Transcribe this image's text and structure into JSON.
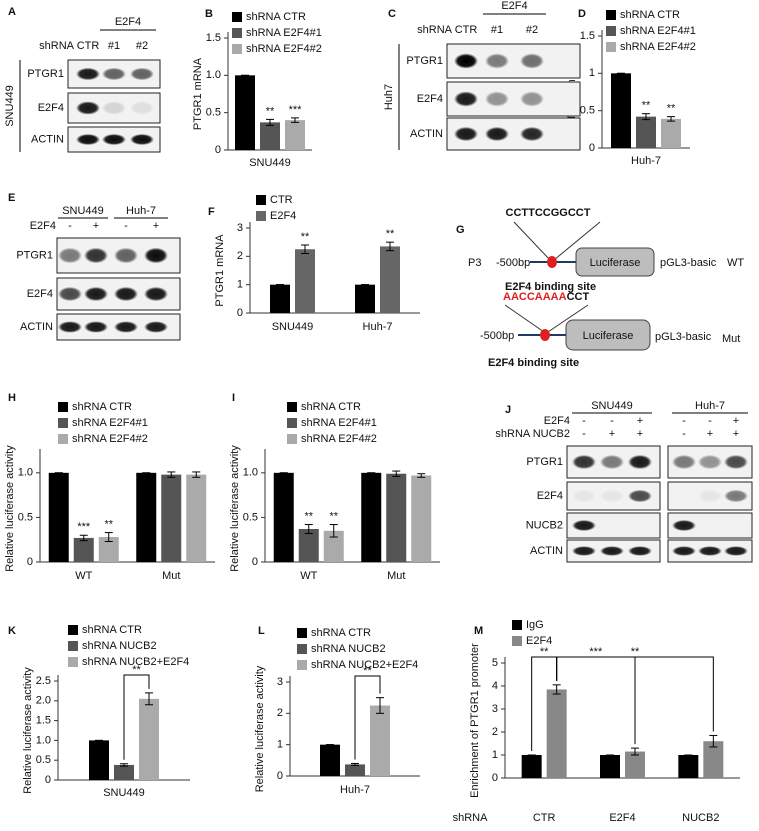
{
  "chart_data": [
    {
      "panel": "B",
      "type": "bar",
      "ylabel": "PTGR1 mRNA",
      "xlabel": "SNU449",
      "ylim": [
        0,
        1.5
      ],
      "yticks": [
        0,
        0.5,
        {
          "value": 1,
          "label": "1.0"
        },
        1.5
      ],
      "series": [
        {
          "name": "shRNA CTR",
          "color": "#000000",
          "values": [
            1.0
          ],
          "errors": [
            0.0
          ]
        },
        {
          "name": "shRNA E2F4#1",
          "color": "#555555",
          "values": [
            0.37
          ],
          "errors": [
            0.04
          ]
        },
        {
          "name": "shRNA E2F4#2",
          "color": "#aaaaaa",
          "values": [
            0.4
          ],
          "errors": [
            0.03
          ]
        }
      ],
      "annotations": [
        {
          "text": "**",
          "series": 1,
          "category": 0
        },
        {
          "text": "***",
          "series": 2,
          "category": 0
        }
      ]
    },
    {
      "panel": "D",
      "type": "bar",
      "ylabel": "PTGR1 mRNA",
      "xlabel": "Huh-7",
      "ylim": [
        0,
        1.5
      ],
      "yticks": [
        0,
        0.5,
        1,
        1.5
      ],
      "series": [
        {
          "name": "shRNA CTR",
          "color": "#000000",
          "values": [
            1.0
          ],
          "errors": [
            0.0
          ]
        },
        {
          "name": "shRNA E2F4#1",
          "color": "#555555",
          "values": [
            0.42
          ],
          "errors": [
            0.04
          ]
        },
        {
          "name": "shRNA E2F4#2",
          "color": "#aaaaaa",
          "values": [
            0.39
          ],
          "errors": [
            0.03
          ]
        }
      ],
      "annotations": [
        {
          "text": "**",
          "series": 1,
          "category": 0
        },
        {
          "text": "**",
          "series": 2,
          "category": 0
        }
      ]
    },
    {
      "panel": "F",
      "type": "bar",
      "ylabel": "PTGR1 mRNA",
      "categories": [
        "SNU449",
        "Huh-7"
      ],
      "ylim": [
        0,
        3
      ],
      "yticks": [
        0,
        1,
        2,
        3
      ],
      "series": [
        {
          "name": "CTR",
          "color": "#000000",
          "values": [
            1.0,
            1.0
          ],
          "errors": [
            0.0,
            0.0
          ]
        },
        {
          "name": "E2F4",
          "color": "#666666",
          "values": [
            2.25,
            2.35
          ],
          "errors": [
            0.15,
            0.15
          ]
        }
      ],
      "annotations": [
        {
          "text": "**",
          "series": 1,
          "category": 0
        },
        {
          "text": "**",
          "series": 1,
          "category": 1
        }
      ]
    },
    {
      "panel": "H",
      "type": "bar",
      "ylabel": "Relative luciferase activity",
      "categories": [
        "WT",
        "Mut"
      ],
      "ylim": [
        0,
        1.2
      ],
      "yticks": [
        0,
        0.5,
        {
          "value": 1,
          "label": "1.0"
        }
      ],
      "series": [
        {
          "name": "shRNA CTR",
          "color": "#000000",
          "values": [
            1.0,
            1.0
          ],
          "errors": [
            0.0,
            0.0
          ]
        },
        {
          "name": "shRNA E2F4#1",
          "color": "#555555",
          "values": [
            0.27,
            0.98
          ],
          "errors": [
            0.03,
            0.03
          ]
        },
        {
          "name": "shRNA E2F4#2",
          "color": "#aaaaaa",
          "values": [
            0.28,
            0.98
          ],
          "errors": [
            0.05,
            0.03
          ]
        }
      ],
      "annotations": [
        {
          "text": "***",
          "series": 1,
          "category": 0
        },
        {
          "text": "**",
          "series": 2,
          "category": 0
        }
      ]
    },
    {
      "panel": "I",
      "type": "bar",
      "ylabel": "Relative luciferase activity",
      "categories": [
        "WT",
        "Mut"
      ],
      "ylim": [
        0,
        1.2
      ],
      "yticks": [
        0,
        0.5,
        {
          "value": 1,
          "label": "1.0"
        }
      ],
      "series": [
        {
          "name": "shRNA CTR",
          "color": "#000000",
          "values": [
            1.0,
            1.0
          ],
          "errors": [
            0.0,
            0.0
          ]
        },
        {
          "name": "shRNA E2F4#1",
          "color": "#555555",
          "values": [
            0.37,
            0.99
          ],
          "errors": [
            0.05,
            0.03
          ]
        },
        {
          "name": "shRNA E2F4#2",
          "color": "#aaaaaa",
          "values": [
            0.35,
            0.97
          ],
          "errors": [
            0.07,
            0.02
          ]
        }
      ],
      "annotations": [
        {
          "text": "**",
          "series": 1,
          "category": 0
        },
        {
          "text": "**",
          "series": 2,
          "category": 0
        }
      ]
    },
    {
      "panel": "K",
      "type": "bar",
      "ylabel": "Relative luciferase activity",
      "xlabel": "SNU449",
      "ylim": [
        0,
        2.5
      ],
      "yticks": [
        0,
        0.5,
        {
          "value": 1,
          "label": "1.0"
        },
        1.5,
        {
          "value": 2,
          "label": "2.0"
        },
        2.5
      ],
      "series": [
        {
          "name": "shRNA CTR",
          "color": "#000000",
          "values": [
            1.0
          ],
          "errors": [
            0.0
          ]
        },
        {
          "name": "shRNA NUCB2",
          "color": "#555555",
          "values": [
            0.38
          ],
          "errors": [
            0.03
          ]
        },
        {
          "name": "shRNA  NUCB2+E2F4",
          "color": "#aaaaaa",
          "values": [
            2.05
          ],
          "errors": [
            0.15
          ]
        }
      ],
      "annotations": [
        {
          "text": "**",
          "from": [
            1,
            0
          ],
          "to": [
            2,
            0
          ]
        }
      ]
    },
    {
      "panel": "L",
      "type": "bar",
      "ylabel": "Relative luciferase activity",
      "xlabel": "Huh-7",
      "ylim": [
        0,
        3
      ],
      "yticks": [
        0,
        1,
        2,
        3
      ],
      "series": [
        {
          "name": "shRNA CTR",
          "color": "#000000",
          "values": [
            1.0
          ],
          "errors": [
            0.0
          ]
        },
        {
          "name": "shRNA NUCB2",
          "color": "#555555",
          "values": [
            0.37
          ],
          "errors": [
            0.03
          ]
        },
        {
          "name": "shRNA  NUCB2+E2F4",
          "color": "#aaaaaa",
          "values": [
            2.25
          ],
          "errors": [
            0.25
          ]
        }
      ],
      "annotations": [
        {
          "text": "**",
          "from": [
            1,
            0
          ],
          "to": [
            2,
            0
          ]
        }
      ]
    },
    {
      "panel": "M",
      "type": "bar",
      "ylabel": "Enrichment of PTGR1 promoter",
      "xlabel": "shRNA",
      "categories": [
        "CTR",
        "E2F4",
        "NUCB2"
      ],
      "ylim": [
        0,
        5
      ],
      "yticks": [
        0,
        1,
        2,
        3,
        4,
        5
      ],
      "series": [
        {
          "name": "IgG",
          "color": "#000000",
          "values": [
            1.0,
            1.0,
            1.0
          ],
          "errors": [
            0.0,
            0.0,
            0.0
          ]
        },
        {
          "name": "E2F4",
          "color": "#888888",
          "values": [
            3.85,
            1.15,
            1.6
          ],
          "errors": [
            0.2,
            0.15,
            0.25
          ]
        }
      ],
      "annotations": [
        {
          "text": "**",
          "from": [
            0,
            0
          ],
          "to": [
            1,
            0
          ]
        },
        {
          "text": "***",
          "from": [
            1,
            0
          ],
          "to": [
            1,
            1
          ]
        },
        {
          "text": "**",
          "from": [
            1,
            0
          ],
          "to": [
            1,
            2
          ]
        }
      ]
    }
  ],
  "blots": [
    {
      "panel": "A",
      "cell": "SNU449",
      "header": "shRNA",
      "group": "E2F4",
      "lanes": [
        "CTR",
        "#1",
        "#2"
      ],
      "rows": [
        "PTGR1",
        "E2F4",
        "ACTIN"
      ]
    },
    {
      "panel": "C",
      "cell": "Huh7",
      "header": "shRNA",
      "group": "E2F4",
      "lanes": [
        "CTR",
        "#1",
        "#2"
      ],
      "rows": [
        "PTGR1",
        "E2F4",
        "ACTIN"
      ]
    },
    {
      "panel": "E",
      "groups": [
        "SNU449",
        "Huh-7"
      ],
      "sign_rows": [
        {
          "label": "E2F4",
          "signs": [
            "-",
            "+",
            "-",
            "+"
          ]
        }
      ],
      "rows": [
        "PTGR1",
        "E2F4",
        "ACTIN"
      ]
    },
    {
      "panel": "J",
      "groups": [
        "SNU449",
        "Huh-7"
      ],
      "sign_rows": [
        {
          "label": "E2F4",
          "signs": [
            "-",
            "-",
            "+",
            "-",
            "-",
            "+"
          ]
        },
        {
          "label": "shRNA NUCB2",
          "signs": [
            "-",
            "+",
            "+",
            "-",
            "+",
            "+"
          ]
        }
      ],
      "rows": [
        "PTGR1",
        "E2F4",
        "NUCB2",
        "ACTIN"
      ]
    }
  ],
  "diagram": {
    "panel": "G",
    "wt": {
      "sequence": "CCTTCCGGCCT",
      "promoter": "P3",
      "position": "-500bp",
      "gene": "Luciferase",
      "vector": "pGL3-basic",
      "variant": "WT",
      "site": "E2F4 binding site"
    },
    "mut": {
      "sequence_mutated": "AACCAAAA",
      "sequence_rest": "CCT",
      "position": "-500bp",
      "gene": "Luciferase",
      "vector": "pGL3-basic",
      "variant": "Mut",
      "site": "E2F4 binding site"
    }
  }
}
